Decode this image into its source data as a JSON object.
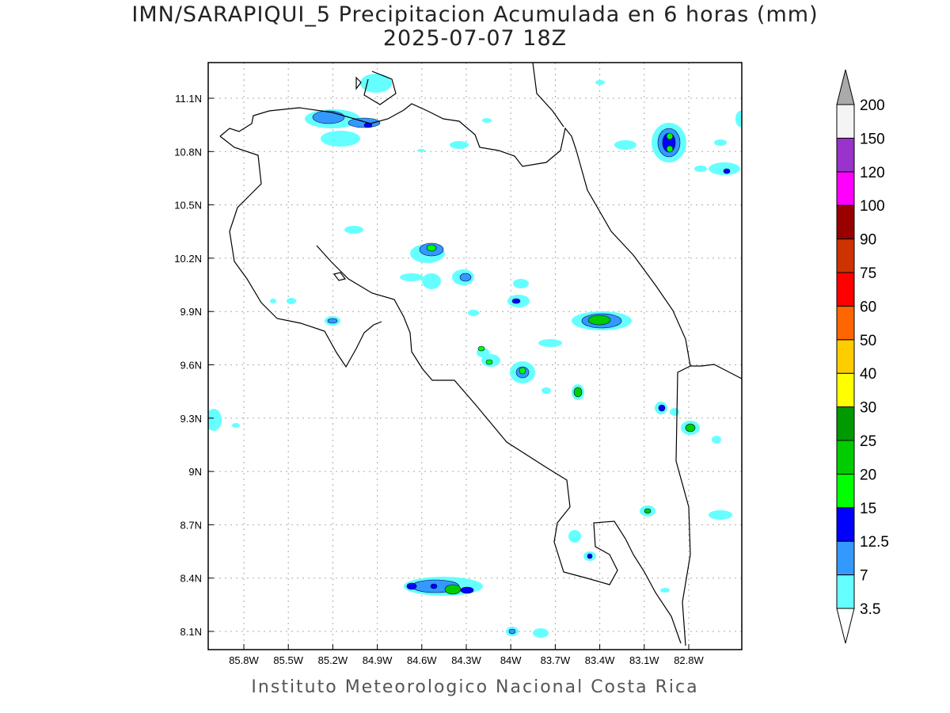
{
  "title": "IMN/SARAPIQUI_5 Precipitacion Acumulada en 6 horas (mm)",
  "subtitle": "2025-07-07 18Z",
  "footer": "Instituto Meteorologico Nacional Costa Rica",
  "lat_labels": [
    "11.1N",
    "10.8N",
    "10.5N",
    "10.2N",
    "9.9N",
    "9.6N",
    "9.3N",
    "9N",
    "8.7N",
    "8.4N",
    "8.1N"
  ],
  "lon_labels": [
    "85.8W",
    "85.5W",
    "85.2W",
    "84.9W",
    "84.6W",
    "84.3W",
    "84W",
    "83.7W",
    "83.4W",
    "83.1W",
    "82.8W"
  ],
  "colorbar": {
    "labels": [
      "3.5",
      "7",
      "12.5",
      "15",
      "20",
      "25",
      "30",
      "40",
      "50",
      "60",
      "75",
      "90",
      "100",
      "120",
      "150",
      "200"
    ],
    "colors": [
      "#66ffff",
      "#3399ff",
      "#0000ff",
      "#00ff00",
      "#00cc00",
      "#009900",
      "#ffff00",
      "#ffcc00",
      "#ff6600",
      "#ff0000",
      "#cc3300",
      "#990000",
      "#ff00ff",
      "#9933cc",
      "#f4f4f4"
    ],
    "above_color": "#aaaaaa",
    "below_color": "#ffffff"
  }
}
